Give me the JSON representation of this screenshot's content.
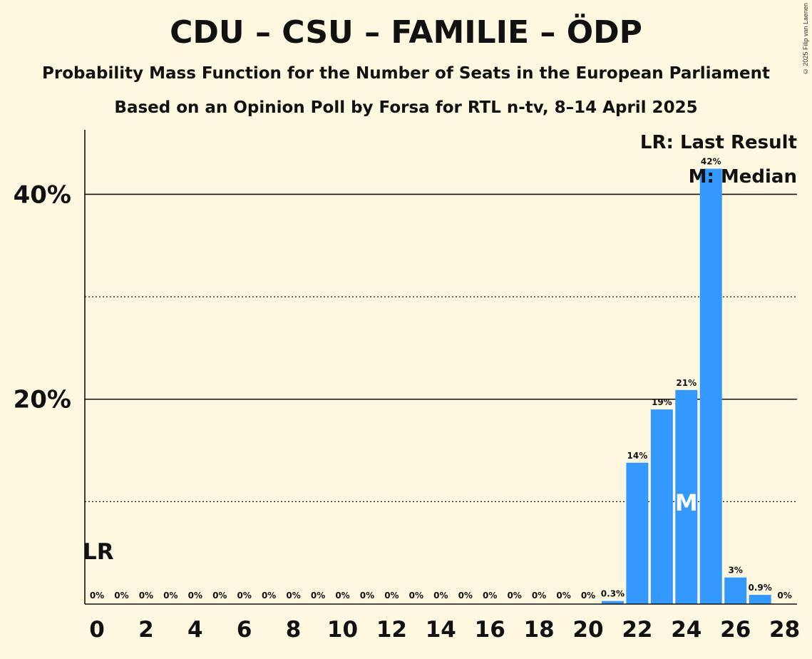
{
  "title": "CDU – CSU – FAMILIE – ÖDP",
  "subtitle_1": "Probability Mass Function for the Number of Seats in the European Parliament",
  "subtitle_2": "Based on an Opinion Poll by Forsa for RTL n-tv, 8–14 April 2025",
  "copyright": "© 2025 Filip van Laenen",
  "legend": {
    "last_result": "LR: Last Result",
    "median": "M: Median"
  },
  "colors": {
    "bar": "#3399FF",
    "background": "#FFF8E1",
    "text": "#111111"
  },
  "chart_data": {
    "type": "bar",
    "xlabel": "",
    "ylabel": "",
    "categories": [
      0,
      1,
      2,
      3,
      4,
      5,
      6,
      7,
      8,
      9,
      10,
      11,
      12,
      13,
      14,
      15,
      16,
      17,
      18,
      19,
      20,
      21,
      22,
      23,
      24,
      25,
      26,
      27,
      28
    ],
    "values": [
      0,
      0,
      0,
      0,
      0,
      0,
      0,
      0,
      0,
      0,
      0,
      0,
      0,
      0,
      0,
      0,
      0,
      0,
      0,
      0,
      0,
      0.3,
      13.8,
      19.0,
      20.9,
      42.5,
      2.6,
      0.9,
      0
    ],
    "data_labels": [
      "0%",
      "0%",
      "0%",
      "0%",
      "0%",
      "0%",
      "0%",
      "0%",
      "0%",
      "0%",
      "0%",
      "0%",
      "0%",
      "0%",
      "0%",
      "0%",
      "0%",
      "0%",
      "0%",
      "0%",
      "0%",
      "0.3%",
      "14%",
      "19%",
      "21%",
      "42%",
      "3%",
      "0.9%",
      "0%"
    ],
    "x_tick_labels": [
      "0",
      "2",
      "4",
      "6",
      "8",
      "10",
      "12",
      "14",
      "16",
      "18",
      "20",
      "22",
      "24",
      "26",
      "28"
    ],
    "y_tick_labels": [
      "20%",
      "40%"
    ],
    "y_ticks": [
      20,
      40
    ],
    "y_minor_gridlines": [
      10,
      30
    ],
    "ylim": [
      0,
      46.3
    ],
    "last_result_seat": 0,
    "last_result_label": "LR",
    "median_seat": 24,
    "median_label": "M"
  }
}
